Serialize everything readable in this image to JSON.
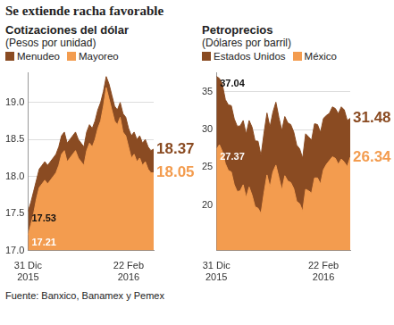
{
  "title": "Se extiende racha favorable",
  "source": "Fuente: Banxico, Banamex y Pemex",
  "chart_data": [
    {
      "type": "area",
      "title": "Cotizaciones del dólar",
      "subtitle": "(Pesos por unidad)",
      "legend": "top",
      "grid": true,
      "categories": [
        "31 Dic 2015",
        null,
        null,
        null,
        null,
        null,
        null,
        null,
        null,
        null,
        null,
        null,
        null,
        null,
        null,
        null,
        null,
        null,
        null,
        null,
        null,
        null,
        null,
        null,
        null,
        null,
        null,
        null,
        null,
        null,
        null,
        null,
        null,
        null,
        null,
        null,
        "22 Feb 2016",
        null,
        null,
        null,
        null,
        null,
        null,
        null,
        null,
        null
      ],
      "series": [
        {
          "name": "Menudeo",
          "color": "#8a4b22",
          "values": [
            17.53,
            17.65,
            17.8,
            17.95,
            18.1,
            18.15,
            18.2,
            18.15,
            18.2,
            18.25,
            18.3,
            18.4,
            18.55,
            18.6,
            18.45,
            18.5,
            18.55,
            18.6,
            18.5,
            18.45,
            18.4,
            18.6,
            18.7,
            18.65,
            18.75,
            18.9,
            19.0,
            19.15,
            19.35,
            19.25,
            19.1,
            18.95,
            18.9,
            19.0,
            18.85,
            18.8,
            18.65,
            18.55,
            18.6,
            18.5,
            18.55,
            18.45,
            18.5,
            18.4,
            18.35,
            18.37
          ],
          "value_labels": [
            "17.53",
            null,
            null,
            null,
            null,
            null,
            null,
            null,
            null,
            null,
            null,
            null,
            null,
            null,
            null,
            null,
            null,
            null,
            null,
            null,
            null,
            null,
            null,
            null,
            null,
            null,
            null,
            null,
            null,
            null,
            null,
            null,
            null,
            null,
            null,
            null,
            null,
            null,
            null,
            null,
            null,
            null,
            null,
            null,
            null,
            "18.37"
          ]
        },
        {
          "name": "Mayoreo",
          "color": "#f39c4f",
          "values": [
            17.21,
            17.35,
            17.5,
            17.7,
            17.85,
            17.9,
            17.95,
            17.9,
            17.95,
            18.0,
            18.05,
            18.15,
            18.3,
            18.35,
            18.2,
            18.25,
            18.3,
            18.35,
            18.25,
            18.2,
            18.15,
            18.35,
            18.45,
            18.4,
            18.5,
            18.65,
            18.75,
            18.95,
            19.2,
            19.05,
            18.9,
            18.75,
            18.7,
            18.8,
            18.6,
            18.55,
            18.4,
            18.25,
            18.3,
            18.2,
            18.25,
            18.15,
            18.2,
            18.1,
            18.05,
            18.05
          ],
          "value_labels": [
            "17.21",
            null,
            null,
            null,
            null,
            null,
            null,
            null,
            null,
            null,
            null,
            null,
            null,
            null,
            null,
            null,
            null,
            null,
            null,
            null,
            null,
            null,
            null,
            null,
            null,
            null,
            null,
            null,
            null,
            null,
            null,
            null,
            null,
            null,
            null,
            null,
            null,
            null,
            null,
            null,
            null,
            null,
            null,
            null,
            null,
            "18.05"
          ]
        }
      ],
      "ylim": [
        17,
        19.4
      ],
      "yticks": [
        {
          "value": 17,
          "label": "17.0"
        },
        17.5,
        {
          "value": 18,
          "label": "18.0"
        },
        18.5,
        {
          "value": 19,
          "label": "19.0"
        }
      ]
    },
    {
      "type": "area",
      "title": "Petroprecios",
      "subtitle": "(Dólares por barril)",
      "legend": "top",
      "grid": true,
      "categories": [
        "31 Dic 2015",
        null,
        null,
        null,
        null,
        null,
        null,
        null,
        null,
        null,
        null,
        null,
        null,
        null,
        null,
        null,
        null,
        null,
        null,
        null,
        null,
        null,
        null,
        null,
        null,
        null,
        null,
        null,
        null,
        null,
        null,
        null,
        null,
        null,
        null,
        null,
        "22 Feb 2016",
        null,
        null,
        null,
        null,
        null,
        null,
        null,
        null,
        null
      ],
      "series": [
        {
          "name": "Estados Unidos",
          "color": "#8a4b22",
          "values": [
            37.04,
            36.76,
            35.97,
            33.97,
            33.27,
            33.16,
            31.41,
            30.44,
            30.48,
            31.2,
            29.42,
            31.2,
            30.3,
            28.5,
            28.46,
            26.55,
            29.53,
            32.19,
            30.34,
            32.3,
            33.62,
            31.62,
            29.88,
            31.72,
            30.89,
            30.66,
            29.69,
            27.94,
            27.45,
            26.21,
            29.44,
            29.04,
            28.6,
            30.77,
            30.66,
            29.64,
            31.48,
            31.87,
            32.15,
            33.0,
            32.78,
            32.1,
            33.0,
            32.6,
            31.2,
            31.48
          ],
          "value_labels": [
            "37.04",
            null,
            null,
            null,
            null,
            null,
            null,
            null,
            null,
            null,
            null,
            null,
            null,
            null,
            null,
            null,
            null,
            null,
            null,
            null,
            null,
            null,
            null,
            null,
            null,
            null,
            null,
            null,
            null,
            null,
            null,
            null,
            null,
            null,
            null,
            null,
            null,
            null,
            null,
            null,
            null,
            null,
            null,
            null,
            null,
            "31.48"
          ]
        },
        {
          "name": "México",
          "color": "#f39c4f",
          "values": [
            27.37,
            28.0,
            27.1,
            25.5,
            24.6,
            24.4,
            22.7,
            21.8,
            21.9,
            22.7,
            21.0,
            22.4,
            21.3,
            19.8,
            19.6,
            18.9,
            21.6,
            24.0,
            22.4,
            24.4,
            25.3,
            23.7,
            22.0,
            23.9,
            23.2,
            23.0,
            22.2,
            20.5,
            20.2,
            19.2,
            22.1,
            21.9,
            21.6,
            23.6,
            23.6,
            22.8,
            24.7,
            25.4,
            25.9,
            26.4,
            26.2,
            25.4,
            26.1,
            25.7,
            25.1,
            26.34
          ],
          "value_labels": [
            "27.37",
            null,
            null,
            null,
            null,
            null,
            null,
            null,
            null,
            null,
            null,
            null,
            null,
            null,
            null,
            null,
            null,
            null,
            null,
            null,
            null,
            null,
            null,
            null,
            null,
            null,
            null,
            null,
            null,
            null,
            null,
            null,
            null,
            null,
            null,
            null,
            null,
            null,
            null,
            null,
            null,
            null,
            null,
            null,
            null,
            "26.34"
          ]
        }
      ],
      "ylim": [
        14,
        37.5
      ],
      "yticks": [
        20,
        25,
        30,
        35
      ]
    }
  ]
}
